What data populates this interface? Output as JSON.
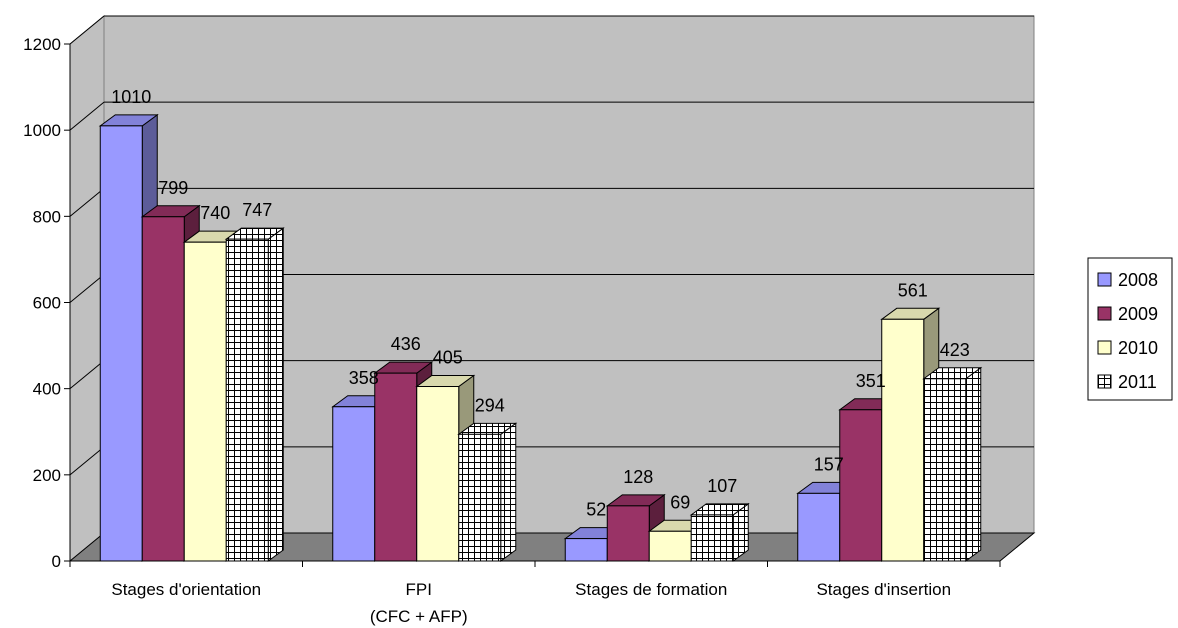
{
  "chart_data": {
    "type": "bar",
    "title": "",
    "xlabel": "",
    "ylabel": "",
    "ylim": [
      0,
      1200
    ],
    "yticks": [
      0,
      200,
      400,
      600,
      800,
      1000,
      1200
    ],
    "grid": true,
    "legend_position": "right",
    "categories": [
      [
        "Stages d'orientation"
      ],
      [
        "FPI",
        "(CFC + AFP)"
      ],
      [
        "Stages de formation"
      ],
      [
        "Stages d'insertion"
      ]
    ],
    "series": [
      {
        "name": "2008",
        "values": [
          1010,
          358,
          52,
          157
        ],
        "color": "#9999ff",
        "pattern": "solid"
      },
      {
        "name": "2009",
        "values": [
          799,
          436,
          128,
          351
        ],
        "color": "#993366",
        "pattern": "solid"
      },
      {
        "name": "2010",
        "values": [
          740,
          405,
          69,
          561
        ],
        "color": "#ffffcc",
        "pattern": "solid"
      },
      {
        "name": "2011",
        "values": [
          747,
          294,
          107,
          423
        ],
        "color": "#ffffff",
        "pattern": "grid"
      }
    ],
    "colors": {
      "wall": "#c0c0c0",
      "floor": "#808080",
      "gridline": "#000000"
    }
  }
}
